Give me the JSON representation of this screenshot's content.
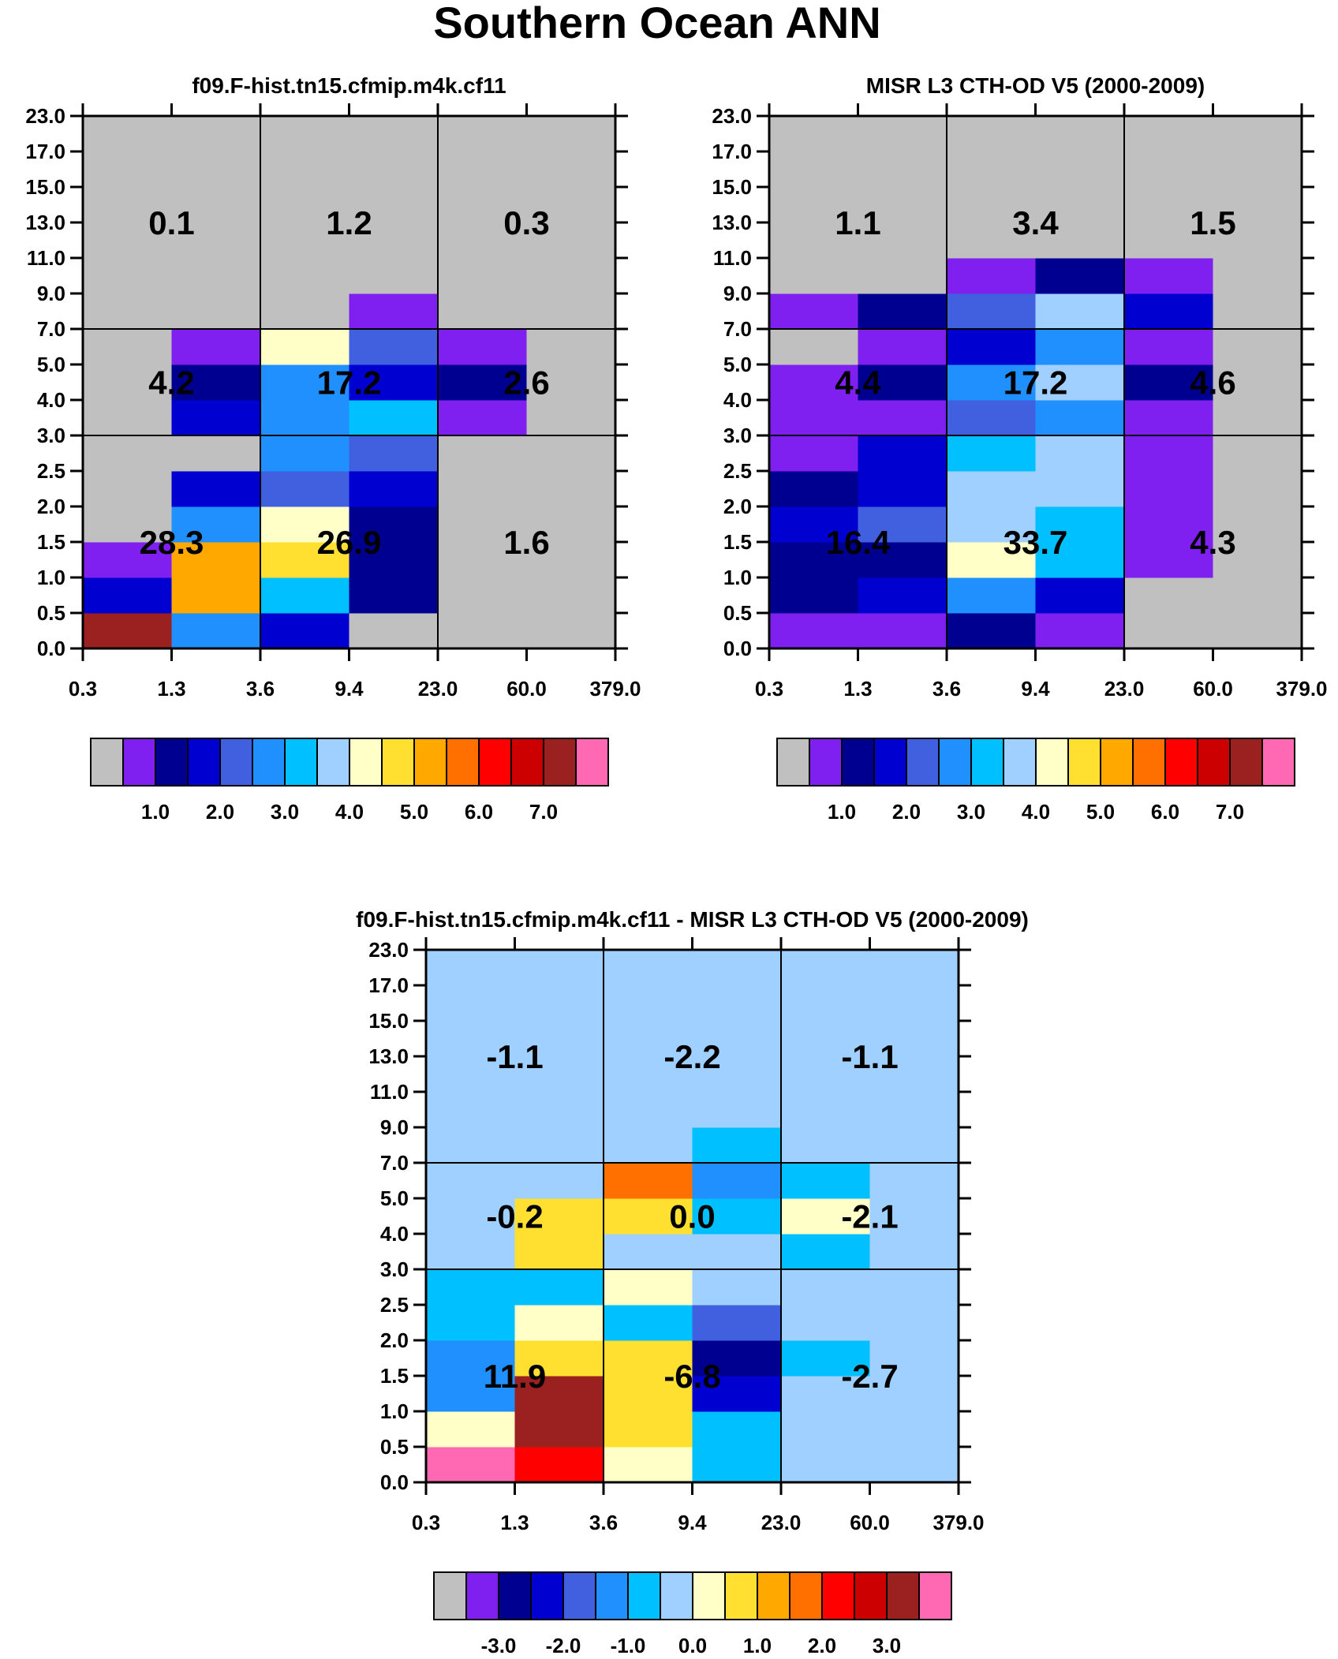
{
  "page_title": "Southern Ocean ANN",
  "colors": {
    "missing": "#c0c0c0",
    "palette": [
      "#c0c0c0",
      "#8020f0",
      "#000090",
      "#0000d0",
      "#4060e0",
      "#2090ff",
      "#00c0ff",
      "#a0d0ff",
      "#ffffc8",
      "#ffe030",
      "#ffa800",
      "#ff7000",
      "#ff0000",
      "#cc0000",
      "#9b2020",
      "#ff69b4"
    ]
  },
  "chart_data": [
    {
      "type": "heatmap",
      "title": "f09.F-hist.tn15.cfmip.m4k.cf11",
      "x_ticks": [
        "0.3",
        "1.3",
        "3.6",
        "9.4",
        "23.0",
        "60.0",
        "379.0"
      ],
      "y_ticks": [
        "0.0",
        "0.5",
        "1.0",
        "1.5",
        "2.0",
        "2.5",
        "3.0",
        "4.0",
        "5.0",
        "7.0",
        "9.0",
        "11.0",
        "13.0",
        "15.0",
        "17.0",
        "23.0"
      ],
      "cells_note": "color index per optical-depth bin (cols) and height bin (rows, bottom to top); 0 = gray/missing",
      "cells": [
        [
          14,
          5,
          3,
          0,
          0,
          0
        ],
        [
          3,
          10,
          6,
          2,
          0,
          0
        ],
        [
          1,
          10,
          9,
          2,
          0,
          0
        ],
        [
          0,
          5,
          8,
          2,
          0,
          0
        ],
        [
          0,
          3,
          4,
          3,
          0,
          0
        ],
        [
          0,
          0,
          5,
          4,
          0,
          0
        ],
        [
          0,
          3,
          5,
          6,
          1,
          0
        ],
        [
          0,
          2,
          5,
          3,
          2,
          0
        ],
        [
          0,
          1,
          8,
          4,
          1,
          0
        ],
        [
          0,
          0,
          0,
          1,
          0,
          0
        ],
        [
          0,
          0,
          0,
          0,
          0,
          0
        ],
        [
          0,
          0,
          0,
          0,
          0,
          0
        ],
        [
          0,
          0,
          0,
          0,
          0,
          0
        ],
        [
          0,
          0,
          0,
          0,
          0,
          0
        ],
        [
          0,
          0,
          0,
          0,
          0,
          0
        ]
      ],
      "group_totals": [
        [
          "28.3",
          "26.9",
          "1.6"
        ],
        [
          "4.2",
          "17.2",
          "2.6"
        ],
        [
          "0.1",
          "1.2",
          "0.3"
        ]
      ],
      "colorbar": {
        "labels": [
          "1.0",
          "2.0",
          "3.0",
          "4.0",
          "5.0",
          "6.0",
          "7.0"
        ]
      }
    },
    {
      "type": "heatmap",
      "title": "MISR L3 CTH-OD V5 (2000-2009)",
      "x_ticks": [
        "0.3",
        "1.3",
        "3.6",
        "9.4",
        "23.0",
        "60.0",
        "379.0"
      ],
      "y_ticks": [
        "0.0",
        "0.5",
        "1.0",
        "1.5",
        "2.0",
        "2.5",
        "3.0",
        "4.0",
        "5.0",
        "7.0",
        "9.0",
        "11.0",
        "13.0",
        "15.0",
        "17.0",
        "23.0"
      ],
      "cells": [
        [
          1,
          1,
          2,
          1,
          0,
          0
        ],
        [
          2,
          3,
          5,
          3,
          0,
          0
        ],
        [
          2,
          2,
          8,
          6,
          1,
          0
        ],
        [
          3,
          4,
          7,
          6,
          1,
          0
        ],
        [
          2,
          3,
          7,
          7,
          1,
          0
        ],
        [
          1,
          3,
          6,
          7,
          1,
          0
        ],
        [
          1,
          1,
          4,
          5,
          1,
          0
        ],
        [
          1,
          2,
          5,
          7,
          2,
          0
        ],
        [
          0,
          1,
          3,
          5,
          1,
          0
        ],
        [
          1,
          2,
          4,
          7,
          3,
          0
        ],
        [
          0,
          0,
          1,
          2,
          1,
          0
        ],
        [
          0,
          0,
          0,
          0,
          0,
          0
        ],
        [
          0,
          0,
          0,
          0,
          0,
          0
        ],
        [
          0,
          0,
          0,
          0,
          0,
          0
        ],
        [
          0,
          0,
          0,
          0,
          0,
          0
        ]
      ],
      "group_totals": [
        [
          "16.4",
          "33.7",
          "4.3"
        ],
        [
          "4.4",
          "17.2",
          "4.6"
        ],
        [
          "1.1",
          "3.4",
          "1.5"
        ]
      ],
      "colorbar": {
        "labels": [
          "1.0",
          "2.0",
          "3.0",
          "4.0",
          "5.0",
          "6.0",
          "7.0"
        ]
      }
    },
    {
      "type": "heatmap",
      "title": "f09.F-hist.tn15.cfmip.m4k.cf11 - MISR L3 CTH-OD V5 (2000-2009)",
      "x_ticks": [
        "0.3",
        "1.3",
        "3.6",
        "9.4",
        "23.0",
        "60.0",
        "379.0"
      ],
      "y_ticks": [
        "0.0",
        "0.5",
        "1.0",
        "1.5",
        "2.0",
        "2.5",
        "3.0",
        "4.0",
        "5.0",
        "7.0",
        "9.0",
        "11.0",
        "13.0",
        "15.0",
        "17.0",
        "23.0"
      ],
      "cells": [
        [
          15,
          12,
          8,
          6,
          7,
          7
        ],
        [
          8,
          14,
          9,
          6,
          7,
          7
        ],
        [
          5,
          14,
          9,
          3,
          7,
          7
        ],
        [
          5,
          9,
          9,
          2,
          6,
          7
        ],
        [
          6,
          8,
          6,
          4,
          7,
          7
        ],
        [
          6,
          6,
          8,
          7,
          7,
          7
        ],
        [
          7,
          9,
          7,
          7,
          6,
          7
        ],
        [
          7,
          9,
          9,
          6,
          8,
          7
        ],
        [
          7,
          7,
          11,
          5,
          6,
          7
        ],
        [
          7,
          7,
          7,
          6,
          7,
          7
        ],
        [
          7,
          7,
          7,
          7,
          7,
          7
        ],
        [
          7,
          7,
          7,
          7,
          7,
          7
        ],
        [
          7,
          7,
          7,
          7,
          7,
          7
        ],
        [
          7,
          7,
          7,
          7,
          7,
          7
        ],
        [
          7,
          7,
          7,
          7,
          7,
          7
        ]
      ],
      "group_totals": [
        [
          "11.9",
          "-6.8",
          "-2.7"
        ],
        [
          "-0.2",
          "0.0",
          "-2.1"
        ],
        [
          "-1.1",
          "-2.2",
          "-1.1"
        ]
      ],
      "colorbar": {
        "labels": [
          "-3.0",
          "-2.0",
          "-1.0",
          "0.0",
          "1.0",
          "2.0",
          "3.0"
        ]
      }
    }
  ]
}
